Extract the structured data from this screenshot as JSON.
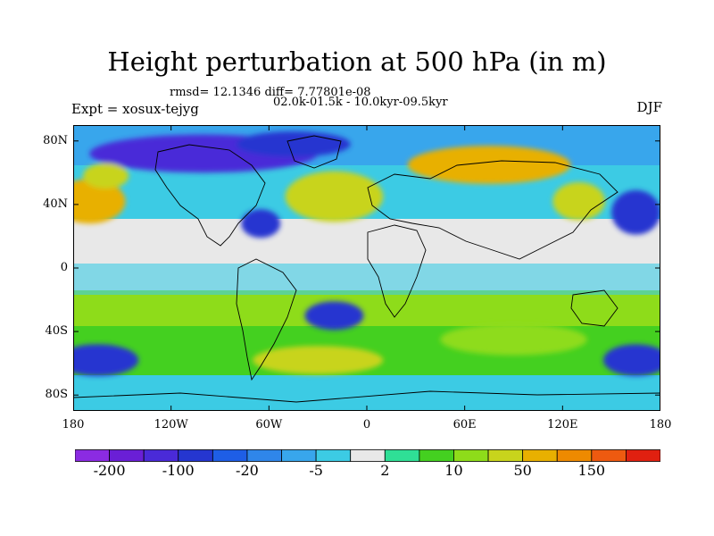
{
  "title": "Height perturbation at 500 hPa (in m)",
  "stats_line": "rmsd= 12.1346 diff= 7.77801e-08",
  "period_line": "02.0k-01.5k - 10.0kyr-09.5kyr",
  "experiment_label": "Expt = xosux-tejyg",
  "season_label": "DJF",
  "map": {
    "projection": "cylindrical equidistant",
    "lon_range": [
      -180,
      180
    ],
    "lat_range": [
      -90,
      90
    ],
    "lat_ticks": [
      {
        "value": 80,
        "label": "80N"
      },
      {
        "value": 40,
        "label": "40N"
      },
      {
        "value": 0,
        "label": "0"
      },
      {
        "value": -40,
        "label": "40S"
      },
      {
        "value": -80,
        "label": "80S"
      }
    ],
    "lon_ticks": [
      {
        "value": -180,
        "label": "180"
      },
      {
        "value": -120,
        "label": "120W"
      },
      {
        "value": -60,
        "label": "60W"
      },
      {
        "value": 0,
        "label": "0"
      },
      {
        "value": 60,
        "label": "60E"
      },
      {
        "value": 120,
        "label": "120E"
      },
      {
        "value": 180,
        "label": "180"
      }
    ],
    "field_regions": [
      {
        "name": "arctic-low",
        "lon": -100,
        "lat": 72,
        "rx": 70,
        "ry": 12,
        "level": -6
      },
      {
        "name": "greenland-low",
        "lon": -45,
        "lat": 78,
        "rx": 35,
        "ry": 8,
        "level": -5
      },
      {
        "name": "pacific-high",
        "lon": -170,
        "lat": 42,
        "rx": 22,
        "ry": 14,
        "level": 5
      },
      {
        "name": "pacific-high-2",
        "lon": -160,
        "lat": 58,
        "rx": 14,
        "ry": 8,
        "level": 4
      },
      {
        "name": "atlantic-high",
        "lon": -20,
        "lat": 45,
        "rx": 30,
        "ry": 16,
        "level": 4
      },
      {
        "name": "siberia-high",
        "lon": 75,
        "lat": 65,
        "rx": 50,
        "ry": 12,
        "level": 5
      },
      {
        "name": "japan-high",
        "lon": 130,
        "lat": 42,
        "rx": 16,
        "ry": 12,
        "level": 4
      },
      {
        "name": "nw-pacific-low",
        "lon": 165,
        "lat": 35,
        "rx": 15,
        "ry": 14,
        "level": -5
      },
      {
        "name": "n-america-low",
        "lon": -65,
        "lat": 28,
        "rx": 12,
        "ry": 9,
        "level": -5
      },
      {
        "name": "s-atlantic-low",
        "lon": -20,
        "lat": -30,
        "rx": 18,
        "ry": 9,
        "level": -5
      },
      {
        "name": "southern-high-1",
        "lon": -30,
        "lat": -58,
        "rx": 40,
        "ry": 9,
        "level": 4
      },
      {
        "name": "southern-high-2",
        "lon": 90,
        "lat": -45,
        "rx": 45,
        "ry": 10,
        "level": 3
      },
      {
        "name": "s-pacific-low",
        "lon": -165,
        "lat": -58,
        "rx": 25,
        "ry": 10,
        "level": -5
      },
      {
        "name": "s-indian-low",
        "lon": 165,
        "lat": -58,
        "rx": 20,
        "ry": 10,
        "level": -5
      }
    ]
  },
  "colorbar": {
    "colors": [
      "#8b2be2",
      "#6a1fd6",
      "#4a2ad8",
      "#2536d0",
      "#1e5ee6",
      "#2f86ea",
      "#38a6ec",
      "#3ccbe4",
      "#e8e8e8",
      "#2fdf96",
      "#44d020",
      "#8edc1a",
      "#c8d41c",
      "#e8b000",
      "#ee8a00",
      "#ee5a10",
      "#e02010"
    ],
    "labels": [
      {
        "index": 1,
        "text": "-200"
      },
      {
        "index": 3,
        "text": "-100"
      },
      {
        "index": 5,
        "text": "-20"
      },
      {
        "index": 7,
        "text": "-5"
      },
      {
        "index": 9,
        "text": "2"
      },
      {
        "index": 11,
        "text": "10"
      },
      {
        "index": 13,
        "text": "50"
      },
      {
        "index": 15,
        "text": "150"
      }
    ]
  }
}
